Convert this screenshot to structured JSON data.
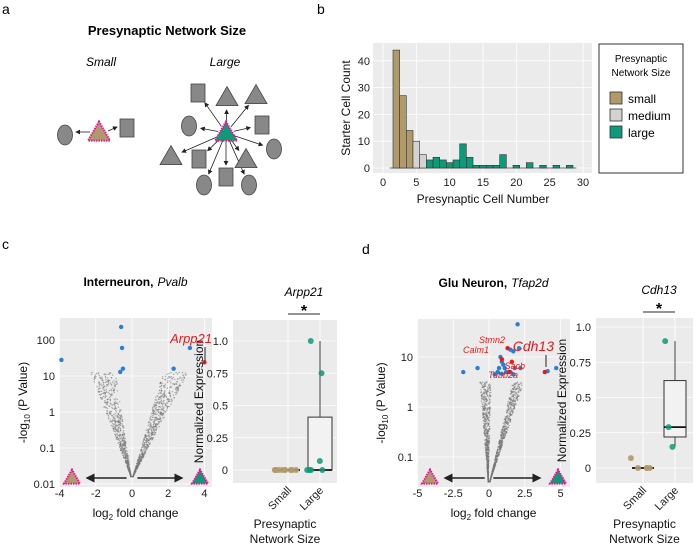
{
  "panels": {
    "a": "a",
    "b": "b",
    "c": "c",
    "d": "d"
  },
  "panel_a": {
    "title": "Presynaptic Network Size",
    "small": "Small",
    "large": "Large"
  },
  "colors": {
    "small": "#b09a6b",
    "medium": "#d3d3d3",
    "large": "#0e9a78",
    "blue": "#2a7fd4",
    "red": "#e41a1c",
    "magenta": "#e0168f",
    "node": "#888888"
  },
  "chart_data": [
    {
      "type": "bar",
      "title": "",
      "xlabel": "Presynaptic Cell Number",
      "ylabel": "Starter Cell Count",
      "xlim": [
        0,
        30
      ],
      "ylim": [
        0,
        45
      ],
      "xticks": [
        "0",
        "5",
        "10",
        "15",
        "20",
        "25",
        "30"
      ],
      "yticks": [
        "0",
        "10",
        "20",
        "30",
        "40"
      ],
      "legend": {
        "title1": "Presynaptic",
        "title2": "Network Size",
        "items": [
          "small",
          "medium",
          "large"
        ],
        "placement": "right"
      },
      "bins": [
        2,
        3,
        4,
        5,
        6,
        7,
        8,
        9,
        10,
        11,
        12,
        13,
        14,
        15,
        16,
        17,
        18,
        20,
        22,
        24,
        26,
        28
      ],
      "values": [
        44,
        27,
        14,
        10,
        5,
        3,
        4,
        3,
        2,
        3,
        9,
        4,
        1,
        1,
        1,
        1,
        5,
        1,
        2,
        1,
        1,
        1
      ],
      "groups": [
        "small",
        "small",
        "small",
        "medium",
        "medium",
        "large",
        "large",
        "large",
        "large",
        "large",
        "large",
        "large",
        "large",
        "large",
        "large",
        "large",
        "large",
        "large",
        "large",
        "large",
        "large",
        "large"
      ]
    },
    {
      "type": "scatter",
      "title_bold": "Interneuron,",
      "title_italic": "Pvalb",
      "xlabel_main": "log",
      "xlabel_sub": "2",
      "xlabel_rest": " fold change",
      "ylabel_pre": "-log",
      "ylabel_sub": "10",
      "ylabel_rest": " (P Value)",
      "xlim": [
        -4,
        4.4
      ],
      "xticks": [
        "-4",
        "-2",
        "0",
        "2",
        "4"
      ],
      "xtick_values": [
        -4,
        -2,
        0,
        2,
        4
      ],
      "yticks": [
        "0.01",
        "0.1",
        "1",
        "10",
        "100"
      ],
      "blue_points": [
        [
          -3.9,
          28
        ],
        [
          -0.6,
          230
        ],
        [
          -0.55,
          60
        ],
        [
          -0.5,
          16
        ],
        [
          -0.65,
          13
        ],
        [
          2.3,
          16
        ],
        [
          3.2,
          60
        ]
      ],
      "red_points": [
        [
          4.0,
          24
        ]
      ],
      "label": "Arpp21"
    },
    {
      "type": "box",
      "gene": "Arpp21",
      "sig": "*",
      "ylabel": "Normalized Expression",
      "xlabel1": "Presynaptic",
      "xlabel2": "Network Size",
      "categories": [
        "Small",
        "Large"
      ],
      "yticks": [
        "0",
        "0.25",
        "0.5",
        "0.75",
        "1.0"
      ],
      "ylim": [
        -0.1,
        1.12
      ],
      "small_points": [
        0,
        0,
        0,
        0,
        0,
        0,
        0,
        0,
        0,
        0
      ],
      "large_points": [
        1.0,
        0.75,
        0.07,
        0,
        0,
        0,
        0
      ],
      "small_box": {
        "q1": 0,
        "median": 0,
        "q3": 0,
        "lo": 0,
        "hi": 0
      },
      "large_box": {
        "q1": 0,
        "median": 0,
        "q3": 0.41,
        "lo": 0,
        "hi": 1.0
      }
    },
    {
      "type": "scatter",
      "title_bold": "Glu Neuron,",
      "title_italic": "Tfap2d",
      "xlabel_main": "log",
      "xlabel_sub": "2",
      "xlabel_rest": " fold change",
      "ylabel_pre": "-log",
      "ylabel_sub": "10",
      "ylabel_rest": " (P Value)",
      "xlim": [
        -5,
        5.4
      ],
      "xticks": [
        "-5",
        "-2.5",
        "0",
        "2.5",
        "5"
      ],
      "xtick_values": [
        -5,
        -2.5,
        0,
        2.5,
        5
      ],
      "yticks": [
        "0.1",
        "1",
        "10"
      ],
      "blue_points": [
        [
          -1.8,
          5
        ],
        [
          -0.8,
          6
        ],
        [
          2.0,
          45
        ],
        [
          4.7,
          6
        ],
        [
          2.1,
          15
        ],
        [
          1.5,
          14
        ],
        [
          1.7,
          13
        ],
        [
          0.8,
          10
        ],
        [
          0.9,
          8
        ],
        [
          1.0,
          7
        ],
        [
          0.7,
          6
        ],
        [
          1.1,
          6
        ],
        [
          0.6,
          5
        ],
        [
          1.2,
          5
        ],
        [
          1.5,
          5
        ],
        [
          1.8,
          6
        ],
        [
          2.2,
          6
        ],
        [
          0.9,
          4.6
        ],
        [
          1.7,
          4.5
        ],
        [
          0.4,
          4.5
        ],
        [
          4.1,
          5.2
        ]
      ],
      "red_points": [
        [
          1.3,
          15
        ],
        [
          0.9,
          9
        ],
        [
          1.6,
          8
        ],
        [
          1.4,
          5
        ],
        [
          3.9,
          5
        ]
      ],
      "labels": [
        "Stmn2",
        "Calm1",
        "Sacb",
        "Tubb2a",
        "Cdh13"
      ]
    },
    {
      "type": "box",
      "gene": "Cdh13",
      "sig": "*",
      "ylabel": "Normalized Expression",
      "xlabel1": "Presynaptic",
      "xlabel2": "Network Size",
      "categories": [
        "Small",
        "Large"
      ],
      "yticks": [
        "0",
        "0.25",
        "0.5",
        "0.75",
        "1.0"
      ],
      "ylim": [
        -0.08,
        1.04
      ],
      "small_points": [
        0.07,
        0,
        0,
        0,
        0
      ],
      "large_points": [
        0.9,
        0.29,
        0.15
      ],
      "small_box": {
        "q1": 0,
        "median": 0,
        "q3": 0,
        "lo": 0,
        "hi": 0
      },
      "large_box": {
        "q1": 0.22,
        "median": 0.29,
        "q3": 0.62,
        "lo": 0.15,
        "hi": 0.9
      }
    }
  ]
}
